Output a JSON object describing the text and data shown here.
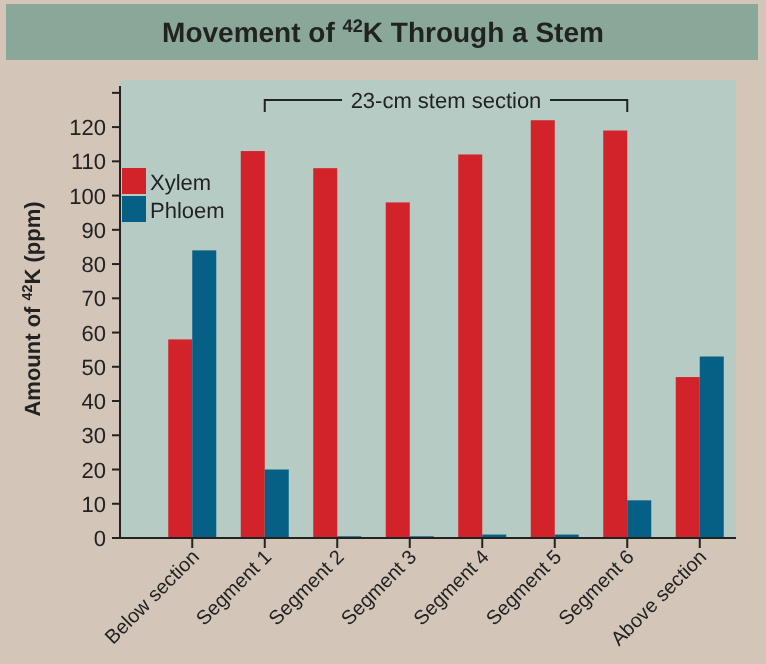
{
  "chart_data": {
    "type": "bar",
    "title": "Movement of $^{42}$K Through a Stem",
    "ylabel": "Amount of $^{42}$K (ppm)",
    "categories": [
      "Below section",
      "Segment 1",
      "Segment 2",
      "Segment 3",
      "Segment 4",
      "Segment 5",
      "Segment 6",
      "Above section"
    ],
    "series": [
      {
        "name": "Xylem",
        "color": "#d2232a",
        "values": [
          58,
          113,
          108,
          98,
          112,
          122,
          119,
          47
        ]
      },
      {
        "name": "Phloem",
        "color": "#065f85",
        "values": [
          84,
          20,
          0.5,
          0.5,
          1,
          1,
          11,
          53
        ]
      }
    ],
    "ylim": [
      0,
      132
    ],
    "yticks": [
      0,
      10,
      20,
      30,
      40,
      50,
      60,
      70,
      80,
      90,
      100,
      110,
      120,
      {
        "value": 130,
        "label": null
      }
    ],
    "annotations": [
      "23-cm stem section"
    ],
    "legend": "top left",
    "grid": false
  }
}
